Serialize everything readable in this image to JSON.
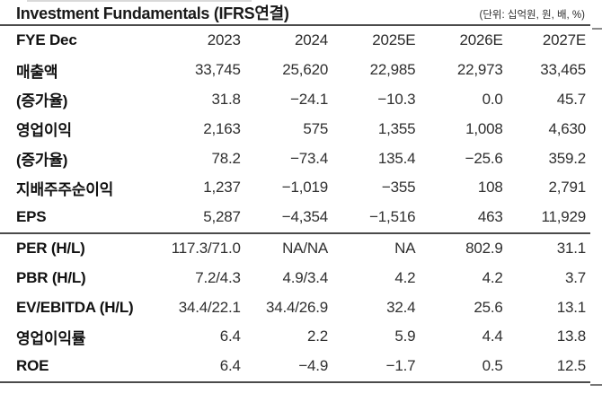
{
  "title": "Investment Fundamentals (IFRS연결)",
  "unit_note": "(단위: 십억원, 원, 배, %)",
  "colors": {
    "rule_line": "#4b4b4b",
    "label_text": "#111111",
    "value_text": "#2f2f2f",
    "background": "#ffffff"
  },
  "table": {
    "header": [
      "FYE Dec",
      "2023",
      "2024",
      "2025E",
      "2026E",
      "2027E"
    ],
    "section_start_row_index": 6,
    "rows": [
      {
        "label": "매출액",
        "values": [
          "33,745",
          "25,620",
          "22,985",
          "22,973",
          "33,465"
        ]
      },
      {
        "label": "(증가율)",
        "values": [
          "31.8",
          "−24.1",
          "−10.3",
          "0.0",
          "45.7"
        ]
      },
      {
        "label": "영업이익",
        "values": [
          "2,163",
          "575",
          "1,355",
          "1,008",
          "4,630"
        ]
      },
      {
        "label": "(증가율)",
        "values": [
          "78.2",
          "−73.4",
          "135.4",
          "−25.6",
          "359.2"
        ]
      },
      {
        "label": "지배주주순이익",
        "values": [
          "1,237",
          "−1,019",
          "−355",
          "108",
          "2,791"
        ]
      },
      {
        "label": "EPS",
        "values": [
          "5,287",
          "−4,354",
          "−1,516",
          "463",
          "11,929"
        ]
      },
      {
        "label": "PER (H/L)",
        "values": [
          "117.3/71.0",
          "NA/NA",
          "NA",
          "802.9",
          "31.1"
        ]
      },
      {
        "label": "PBR (H/L)",
        "values": [
          "7.2/4.3",
          "4.9/3.4",
          "4.2",
          "4.2",
          "3.7"
        ]
      },
      {
        "label": "EV/EBITDA (H/L)",
        "values": [
          "34.4/22.1",
          "34.4/26.9",
          "32.4",
          "25.6",
          "13.1"
        ]
      },
      {
        "label": "영업이익률",
        "values": [
          "6.4",
          "2.2",
          "5.9",
          "4.4",
          "13.8"
        ]
      },
      {
        "label": "ROE",
        "values": [
          "6.4",
          "−4.9",
          "−1.7",
          "0.5",
          "12.5"
        ]
      }
    ]
  }
}
